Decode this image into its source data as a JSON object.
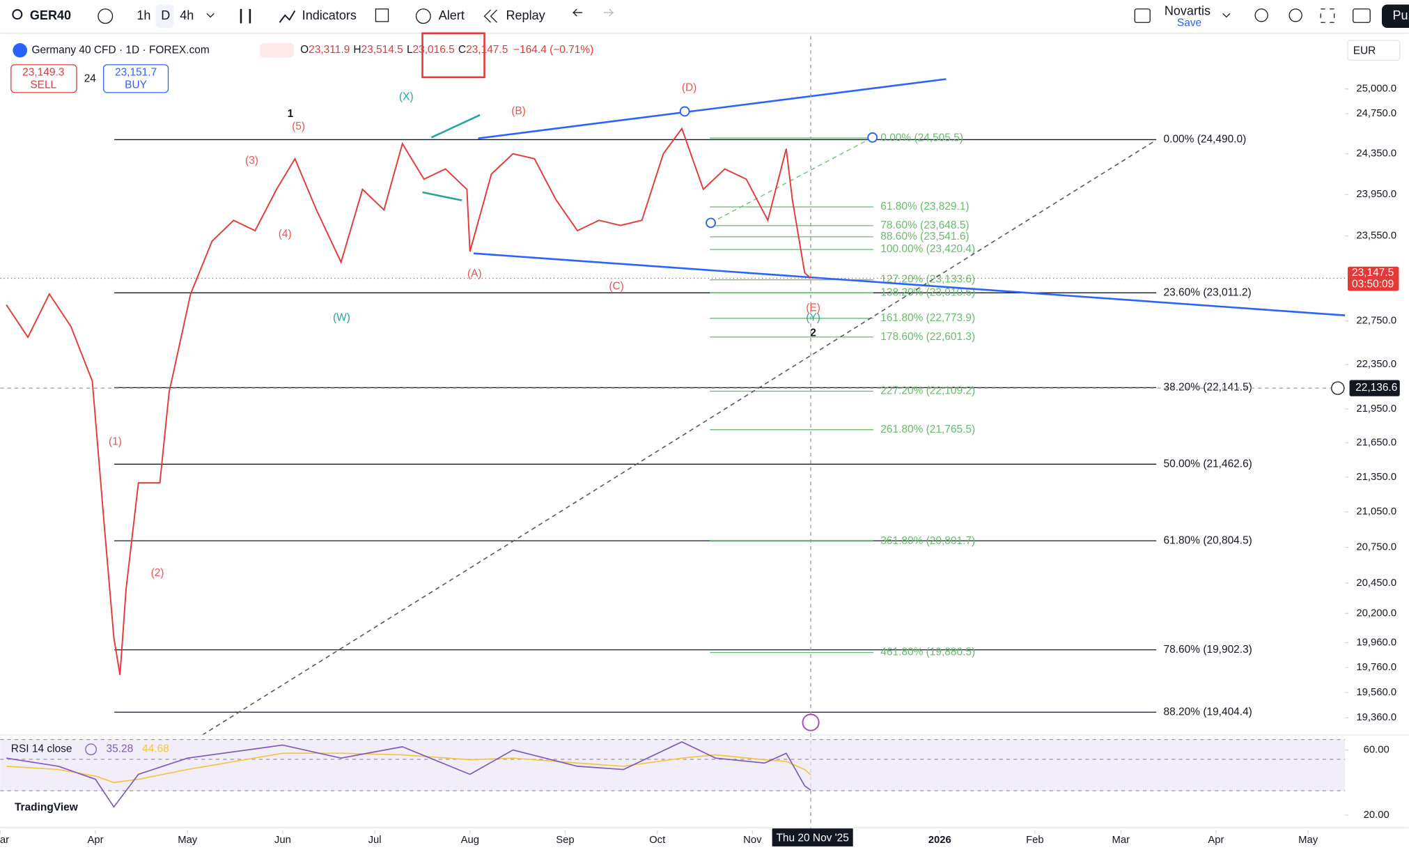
{
  "toolbar": {
    "symbol": "GER40",
    "intervals": [
      "1h",
      "D",
      "4h"
    ],
    "indicators": "Indicators",
    "alert": "Alert",
    "replay": "Replay",
    "layout_name": "Novartis",
    "layout_status": "Save",
    "publish": "Pu"
  },
  "header": {
    "title": "Germany 40 CFD · 1D · FOREX.com",
    "o_label": "O",
    "open": "23,311.9",
    "h_label": "H",
    "high": "23,514.5",
    "l_label": "L",
    "low": "23,016.5",
    "c_label": "C",
    "close": "23,147.5",
    "change": "−164.4 (−0.71%)",
    "sell_price": "23,149.3",
    "sell": "SELL",
    "spread": "24",
    "buy_price": "23,151.7",
    "buy": "BUY",
    "currency": "EUR"
  },
  "chart_data": {
    "type": "line",
    "color": "#e53935",
    "log_scale": true,
    "x": [
      "2025-03-03",
      "2025-03-10",
      "2025-03-17",
      "2025-03-24",
      "2025-03-31",
      "2025-04-04",
      "2025-04-07",
      "2025-04-09",
      "2025-04-11",
      "2025-04-15",
      "2025-04-22",
      "2025-04-25",
      "2025-05-02",
      "2025-05-09",
      "2025-05-16",
      "2025-05-23",
      "2025-05-30",
      "2025-06-05",
      "2025-06-12",
      "2025-06-20",
      "2025-06-27",
      "2025-07-04",
      "2025-07-10",
      "2025-07-17",
      "2025-07-24",
      "2025-07-31",
      "2025-08-01",
      "2025-08-08",
      "2025-08-15",
      "2025-08-22",
      "2025-08-29",
      "2025-09-05",
      "2025-09-12",
      "2025-09-19",
      "2025-09-26",
      "2025-10-03",
      "2025-10-09",
      "2025-10-16",
      "2025-10-23",
      "2025-10-30",
      "2025-11-06",
      "2025-11-12",
      "2025-11-14",
      "2025-11-18",
      "2025-11-20"
    ],
    "values": [
      22900,
      22600,
      23000,
      22700,
      22200,
      20900,
      20000,
      19700,
      20400,
      21300,
      21300,
      22100,
      23000,
      23500,
      23700,
      23600,
      24000,
      24300,
      23800,
      23300,
      24000,
      23800,
      24450,
      24100,
      24200,
      24000,
      23400,
      24150,
      24350,
      24300,
      23900,
      23600,
      23700,
      23650,
      23700,
      24350,
      24600,
      24000,
      24200,
      24100,
      23700,
      24400,
      23900,
      23200,
      23147.5
    ],
    "xlim": [
      "2025-03-01",
      "2026-05-13"
    ],
    "xticks": [
      {
        "value": "2025-03-01",
        "label": "Mar"
      },
      {
        "value": "2025-04-01",
        "label": "Apr"
      },
      {
        "value": "2025-05-01",
        "label": "May"
      },
      {
        "value": "2025-06-01",
        "label": "Jun"
      },
      {
        "value": "2025-07-01",
        "label": "Jul"
      },
      {
        "value": "2025-08-01",
        "label": "Aug"
      },
      {
        "value": "2025-09-01",
        "label": "Sep"
      },
      {
        "value": "2025-10-01",
        "label": "Oct"
      },
      {
        "value": "2025-11-01",
        "label": "Nov"
      },
      {
        "value": "2026-01-01",
        "label": "2026"
      },
      {
        "value": "2026-02-01",
        "label": "Feb"
      },
      {
        "value": "2026-03-01",
        "label": "Mar"
      },
      {
        "value": "2026-04-01",
        "label": "Apr"
      },
      {
        "value": "2026-05-01",
        "label": "May"
      }
    ],
    "ylim": [
      19246,
      25498
    ],
    "yticks": [
      {
        "value": 25000,
        "label": "25,000.0"
      },
      {
        "value": 24750,
        "label": "24,750.0"
      },
      {
        "value": 24350,
        "label": "24,350.0"
      },
      {
        "value": 23950,
        "label": "23,950.0"
      },
      {
        "value": 23550,
        "label": "23,550.0"
      },
      {
        "value": 22750,
        "label": "22,750.0"
      },
      {
        "value": 22350,
        "label": "22,350.0"
      },
      {
        "value": 21950,
        "label": "21,950.0"
      },
      {
        "value": 21650,
        "label": "21,650.0"
      },
      {
        "value": 21350,
        "label": "21,350.0"
      },
      {
        "value": 21050,
        "label": "21,050.0"
      },
      {
        "value": 20750,
        "label": "20,750.0"
      },
      {
        "value": 20450,
        "label": "20,450.0"
      },
      {
        "value": 20200,
        "label": "20,200.0"
      },
      {
        "value": 19960,
        "label": "19,960.0"
      },
      {
        "value": 19760,
        "label": "19,760.0"
      },
      {
        "value": 19560,
        "label": "19,560.0"
      },
      {
        "value": 19360,
        "label": "19,360.0"
      }
    ],
    "last_price": {
      "value": 23147.5,
      "label": "23,147.5",
      "countdown": "03:50:09"
    },
    "crosshair": {
      "value": 22136.6,
      "label": "22,136.6",
      "date": "2025-11-20",
      "date_label": "Thu 20 Nov '25"
    },
    "fib_main": [
      {
        "value": 24490,
        "label": "0.00% (24,490.0)"
      },
      {
        "value": 23011.2,
        "label": "23.60% (23,011.2)"
      },
      {
        "value": 22141.5,
        "label": "38.20% (22,141.5)"
      },
      {
        "value": 21462.6,
        "label": "50.00% (21,462.6)"
      },
      {
        "value": 20804.5,
        "label": "61.80% (20,804.5)"
      },
      {
        "value": 19902.3,
        "label": "78.60% (19,902.3)"
      },
      {
        "value": 19404.4,
        "label": "88.20% (19,404.4)"
      }
    ],
    "fib_ext": [
      {
        "value": 24505.5,
        "label": "0.00% (24,505.5)"
      },
      {
        "value": 23829.1,
        "label": "61.80% (23,829.1)"
      },
      {
        "value": 23648.5,
        "label": "78.60% (23,648.5)"
      },
      {
        "value": 23541.6,
        "label": "88.60% (23,541.6)"
      },
      {
        "value": 23420.4,
        "label": "100.00% (23,420.4)"
      },
      {
        "value": 23133.6,
        "label": "127.20% (23,133.6)"
      },
      {
        "value": 23010.6,
        "label": "138.20% (23,010.6)"
      },
      {
        "value": 22773.9,
        "label": "161.80% (22,773.9)"
      },
      {
        "value": 22601.3,
        "label": "178.60% (22,601.3)"
      },
      {
        "value": 22109.2,
        "label": "227.20% (22,109.2)"
      },
      {
        "value": 21765.5,
        "label": "261.80% (21,765.5)"
      },
      {
        "value": 20801.7,
        "label": "361.80% (20,801.7)"
      },
      {
        "value": 19880.5,
        "label": "461.80% (19,880.5)"
      }
    ],
    "wave_labels": [
      "1",
      "(5)",
      "(3)",
      "(4)",
      "(1)",
      "(2)",
      "(X)",
      "(W)",
      "(B)",
      "(A)",
      "(C)",
      "(D)",
      "(E)",
      "(Y)",
      "2"
    ]
  },
  "rsi": {
    "type": "line",
    "title": "RSI 14 close",
    "x": [
      "2025-03-03",
      "2025-03-20",
      "2025-04-01",
      "2025-04-07",
      "2025-04-15",
      "2025-05-01",
      "2025-06-01",
      "2025-06-20",
      "2025-07-10",
      "2025-08-01",
      "2025-08-15",
      "2025-09-05",
      "2025-09-20",
      "2025-10-09",
      "2025-10-20",
      "2025-11-05",
      "2025-11-12",
      "2025-11-18",
      "2025-11-20"
    ],
    "series": [
      {
        "name": "RSI",
        "color": "#7e57c2",
        "values": [
          55,
          50,
          42,
          25,
          45,
          55,
          63,
          55,
          62,
          45,
          60,
          50,
          48,
          65,
          55,
          52,
          58,
          38,
          35.28
        ]
      },
      {
        "name": "MA",
        "color": "#f5c542",
        "values": [
          50,
          48,
          44,
          40,
          42,
          48,
          58,
          58,
          57,
          54,
          55,
          52,
          50,
          55,
          57,
          54,
          53,
          48,
          44.68
        ]
      }
    ],
    "ylim": [
      15.1,
      67
    ],
    "yticks": [
      {
        "value": 60,
        "label": "60.00"
      },
      {
        "value": 20,
        "label": "20.00"
      }
    ]
  },
  "branding": {
    "logo": "TradingView"
  }
}
